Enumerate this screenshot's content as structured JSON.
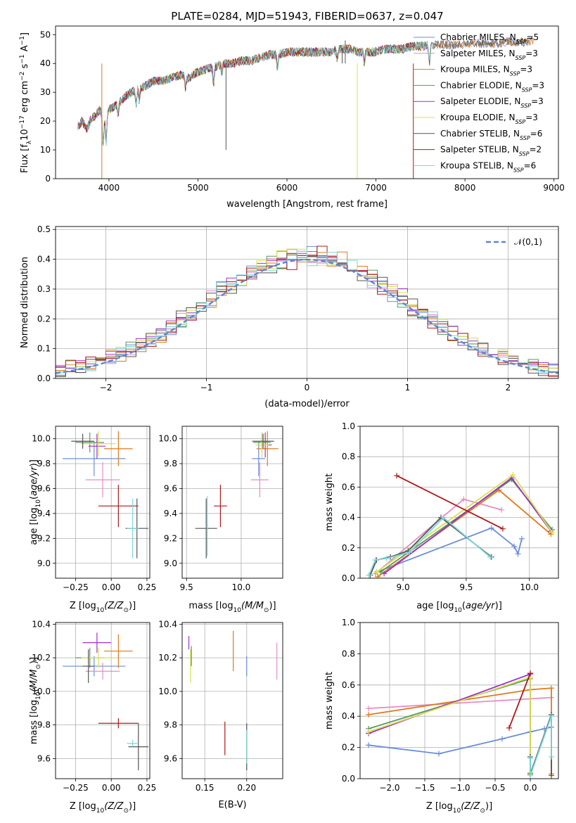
{
  "figure": {
    "title": "PLATE=0284, MJD=51943, FIBERID=0637, z=0.047"
  },
  "models": [
    {
      "name": "Chabrier MILES",
      "nssp": "5",
      "color": "#6a8ed8"
    },
    {
      "name": "Salpeter MILES",
      "nssp": "3",
      "color": "#e68cc4"
    },
    {
      "name": "Kroupa MILES",
      "nssp": "3",
      "color": "#e07a1a"
    },
    {
      "name": "Chabrier ELODIE",
      "nssp": "3",
      "color": "#5a9a5a"
    },
    {
      "name": "Salpeter ELODIE",
      "nssp": "3",
      "color": "#a030c8"
    },
    {
      "name": "Kroupa ELODIE",
      "nssp": "3",
      "color": "#d8e050"
    },
    {
      "name": "Chabrier STELIB",
      "nssp": "6",
      "color": "#555555"
    },
    {
      "name": "Salpeter STELIB",
      "nssp": "2",
      "color": "#b01818"
    },
    {
      "name": "Kroupa STELIB",
      "nssp": "6",
      "color": "#7ad8d8"
    }
  ],
  "chart_data": [
    {
      "id": "spectrum",
      "type": "line",
      "xlabel": "wavelength [Angstrom, rest frame]",
      "ylabel": "Flux [f",
      "ylabel_parts": [
        "Flux [f",
        "λ",
        "10",
        "−17",
        " erg cm",
        "−2",
        " s",
        "−1",
        " A",
        "−1",
        "]"
      ],
      "xlim": [
        3400,
        9050
      ],
      "ylim": [
        0,
        53
      ],
      "xticks": [
        "4000",
        "5000",
        "6000",
        "7000",
        "8000",
        "9000"
      ],
      "yticks": [
        "0",
        "10",
        "20",
        "30",
        "40",
        "50"
      ],
      "legend": "top-right",
      "grid": false,
      "spectrum_anchors": {
        "x": [
          3650,
          3700,
          3750,
          3800,
          3850,
          3900,
          3950,
          4000,
          4100,
          4200,
          4300,
          4400,
          4500,
          4600,
          4700,
          4800,
          4900,
          5000,
          5100,
          5200,
          5300,
          5400,
          5500,
          5600,
          5700,
          5800,
          5900,
          6000,
          6100,
          6200,
          6300,
          6400,
          6500,
          6600,
          6700,
          6800,
          6900,
          7000,
          7100,
          7200,
          7300,
          7400,
          7500
        ],
        "y": [
          18,
          20,
          17,
          21,
          22,
          24,
          20,
          24,
          26,
          29,
          31,
          32,
          34,
          34,
          35,
          36,
          35,
          37,
          38,
          39,
          40,
          40,
          41,
          41,
          42,
          43,
          43,
          44,
          44,
          44,
          44,
          44,
          44,
          45,
          45,
          44,
          44,
          44,
          45,
          45,
          45,
          46,
          46
        ]
      },
      "kroupa_miles_ext": {
        "x": [
          7500,
          7700,
          7900,
          8100,
          8300,
          8500,
          8700,
          8780
        ],
        "y": [
          46,
          46.5,
          46.5,
          47,
          47,
          47.5,
          47.5,
          48
        ]
      }
    },
    {
      "id": "residuals",
      "type": "histogram",
      "xlabel": "(data-model)/error",
      "ylabel": "Normed distribution",
      "xlim": [
        -2.5,
        2.5
      ],
      "ylim": [
        0,
        0.51
      ],
      "xticks": [
        "−2",
        "−1",
        "0",
        "1",
        "2"
      ],
      "yticks": [
        "0.0",
        "0.1",
        "0.2",
        "0.3",
        "0.4",
        "0.5"
      ],
      "legend": "top-right",
      "legend_label": "𝒩(0,1)",
      "grid": true,
      "bin_width": 0.1
    },
    {
      "id": "age-vs-Z",
      "type": "errorbar",
      "xlabel": "Z [log",
      "ylabel": "age [log",
      "xlim": [
        -0.39,
        0.27
      ],
      "ylim": [
        8.88,
        10.1
      ],
      "xticks": [
        "−0.25",
        "0.00",
        "0.25"
      ],
      "yticks": [
        "9.0",
        "9.2",
        "9.4",
        "9.6",
        "9.8",
        "10.0"
      ],
      "grid": true,
      "points": [
        {
          "x": -0.12,
          "y": 9.84,
          "xerr": 0.22,
          "yerr": 0.14,
          "c": 0
        },
        {
          "x": -0.06,
          "y": 9.67,
          "xerr": 0.12,
          "yerr": 0.14,
          "c": 1
        },
        {
          "x": 0.05,
          "y": 9.92,
          "xerr": 0.1,
          "yerr": 0.14,
          "c": 2
        },
        {
          "x": -0.15,
          "y": 9.97,
          "xerr": 0.1,
          "yerr": 0.08,
          "c": 3
        },
        {
          "x": -0.1,
          "y": 9.94,
          "xerr": 0.06,
          "yerr": 0.1,
          "c": 4
        },
        {
          "x": -0.09,
          "y": 9.96,
          "xerr": 0.12,
          "yerr": 0.1,
          "c": 5
        },
        {
          "x": -0.2,
          "y": 9.98,
          "xerr": 0.08,
          "yerr": 0.06,
          "c": 6
        },
        {
          "x": 0.05,
          "y": 9.46,
          "xerr": 0.14,
          "yerr": 0.17,
          "c": 7
        },
        {
          "x": 0.18,
          "y": 9.28,
          "xerr": 0.08,
          "yerr": 0.24,
          "c": 6
        },
        {
          "x": 0.15,
          "y": 9.28,
          "xerr": 0.04,
          "yerr": 0.24,
          "c": 8
        }
      ]
    },
    {
      "id": "age-vs-mass",
      "type": "errorbar",
      "xlabel": "mass [log",
      "ylabel": "",
      "xlim": [
        9.46,
        10.38
      ],
      "ylim": [
        8.88,
        10.1
      ],
      "xticks": [
        "9.5",
        "10.0"
      ],
      "yticks": [
        "9.0",
        "9.2",
        "9.4",
        "9.6",
        "9.8",
        "10.0"
      ],
      "grid": true,
      "points": [
        {
          "x": 10.16,
          "y": 9.84,
          "xerr": 0.06,
          "yerr": 0.14,
          "c": 0
        },
        {
          "x": 10.17,
          "y": 9.67,
          "xerr": 0.08,
          "yerr": 0.14,
          "c": 1
        },
        {
          "x": 10.24,
          "y": 9.92,
          "xerr": 0.1,
          "yerr": 0.14,
          "c": 2
        },
        {
          "x": 10.19,
          "y": 9.97,
          "xerr": 0.08,
          "yerr": 0.08,
          "c": 3
        },
        {
          "x": 10.22,
          "y": 9.95,
          "xerr": 0.06,
          "yerr": 0.1,
          "c": 4
        },
        {
          "x": 10.19,
          "y": 9.95,
          "xerr": 0.06,
          "yerr": 0.1,
          "c": 5
        },
        {
          "x": 10.2,
          "y": 9.98,
          "xerr": 0.1,
          "yerr": 0.06,
          "c": 6
        },
        {
          "x": 9.81,
          "y": 9.46,
          "xerr": 0.06,
          "yerr": 0.17,
          "c": 7
        },
        {
          "x": 9.68,
          "y": 9.28,
          "xerr": 0.1,
          "yerr": 0.24,
          "c": 6
        },
        {
          "x": 9.69,
          "y": 9.3,
          "xerr": 0.01,
          "yerr": 0.24,
          "c": 8
        }
      ]
    },
    {
      "id": "mass-weight-vs-age",
      "type": "line",
      "xlabel": "age  [log",
      "ylabel": "mass weight",
      "xlim": [
        8.66,
        10.23
      ],
      "ylim": [
        0,
        1
      ],
      "xticks": [
        "9.0",
        "9.5",
        "10.0"
      ],
      "yticks": [
        "0.0",
        "0.2",
        "0.4",
        "0.6",
        "0.8",
        "1.0"
      ],
      "grid": true,
      "series": [
        {
          "c": 0,
          "x": [
            8.79,
            9.7,
            9.88,
            9.91,
            9.94
          ],
          "y": [
            0.04,
            0.33,
            0.21,
            0.16,
            0.26
          ]
        },
        {
          "c": 1,
          "x": [
            8.78,
            9.48,
            9.78
          ],
          "y": [
            0.03,
            0.52,
            0.45
          ]
        },
        {
          "c": 2,
          "x": [
            8.8,
            9.76,
            10.17
          ],
          "y": [
            0.01,
            0.58,
            0.29
          ]
        },
        {
          "c": 3,
          "x": [
            8.82,
            9.86,
            10.18
          ],
          "y": [
            0.04,
            0.65,
            0.32
          ]
        },
        {
          "c": 4,
          "x": [
            8.85,
            9.86,
            10.17
          ],
          "y": [
            0.03,
            0.66,
            0.31
          ]
        },
        {
          "c": 5,
          "x": [
            8.79,
            9.87,
            10.18
          ],
          "y": [
            0.04,
            0.68,
            0.3
          ]
        },
        {
          "c": 6,
          "x": [
            8.74,
            8.79,
            8.9,
            9.04,
            9.3,
            9.7
          ],
          "y": [
            0.02,
            0.12,
            0.14,
            0.18,
            0.4,
            0.14
          ]
        },
        {
          "c": 7,
          "x": [
            8.95,
            9.79
          ],
          "y": [
            0.675,
            0.325
          ]
        },
        {
          "c": 8,
          "x": [
            8.73,
            8.78,
            8.87,
            9.05,
            9.32,
            9.69
          ],
          "y": [
            0.02,
            0.12,
            0.13,
            0.17,
            0.4,
            0.14
          ]
        }
      ]
    },
    {
      "id": "mass-vs-Z",
      "type": "errorbar",
      "xlabel": "Z [log",
      "ylabel": "mass [log",
      "xlim": [
        -0.39,
        0.27
      ],
      "ylim": [
        9.48,
        10.41
      ],
      "xticks": [
        "−0.25",
        "0.00",
        "0.25"
      ],
      "yticks": [
        "9.6",
        "9.8",
        "10.0",
        "10.2",
        "10.4"
      ],
      "grid": true,
      "points": [
        {
          "x": -0.12,
          "y": 10.15,
          "xerr": 0.22,
          "yerr": 0.06,
          "c": 0
        },
        {
          "x": -0.06,
          "y": 10.12,
          "xerr": 0.12,
          "yerr": 0.05,
          "c": 1
        },
        {
          "x": 0.05,
          "y": 10.24,
          "xerr": 0.1,
          "yerr": 0.1,
          "c": 2
        },
        {
          "x": -0.15,
          "y": 10.2,
          "xerr": 0.1,
          "yerr": 0.06,
          "c": 3
        },
        {
          "x": -0.1,
          "y": 10.29,
          "xerr": 0.1,
          "yerr": 0.06,
          "c": 4
        },
        {
          "x": -0.09,
          "y": 10.2,
          "xerr": 0.12,
          "yerr": 0.06,
          "c": 5
        },
        {
          "x": -0.16,
          "y": 10.15,
          "xerr": 0.04,
          "yerr": 0.1,
          "c": 6
        },
        {
          "x": 0.05,
          "y": 9.81,
          "xerr": 0.14,
          "yerr": 0.03,
          "c": 7
        },
        {
          "x": 0.19,
          "y": 9.67,
          "xerr": 0.07,
          "yerr": 0.14,
          "c": 6
        },
        {
          "x": 0.15,
          "y": 9.69,
          "xerr": 0.04,
          "yerr": 0.02,
          "c": 8
        }
      ]
    },
    {
      "id": "mass-vs-EBV",
      "type": "errorbar",
      "xlabel": "E(B-V)",
      "ylabel": "",
      "xlim": [
        0.123,
        0.243
      ],
      "ylim": [
        9.48,
        10.41
      ],
      "xticks": [
        "0.15",
        "0.20"
      ],
      "yticks": [
        "9.6",
        "9.8",
        "10.0",
        "10.2",
        "10.4"
      ],
      "grid": true,
      "points": [
        {
          "x": 0.2,
          "y": 10.15,
          "xerr": 0,
          "yerr": 0.06,
          "c": 0
        },
        {
          "x": 0.236,
          "y": 10.18,
          "xerr": 0,
          "yerr": 0.11,
          "c": 1
        },
        {
          "x": 0.184,
          "y": 10.24,
          "xerr": 0,
          "yerr": 0.12,
          "c": 2
        },
        {
          "x": 0.134,
          "y": 10.21,
          "xerr": 0,
          "yerr": 0.06,
          "c": 3
        },
        {
          "x": 0.131,
          "y": 10.29,
          "xerr": 0,
          "yerr": 0.04,
          "c": 4
        },
        {
          "x": 0.133,
          "y": 10.15,
          "xerr": 0,
          "yerr": 0.1,
          "c": 5
        },
        {
          "x": 0.2,
          "y": 9.67,
          "xerr": 0,
          "yerr": 0.14,
          "c": 6
        },
        {
          "x": 0.174,
          "y": 9.72,
          "xerr": 0,
          "yerr": 0.1,
          "c": 7
        },
        {
          "x": 0.2,
          "y": 9.67,
          "xerr": 0,
          "yerr": 0.1,
          "c": 8
        }
      ]
    },
    {
      "id": "mass-weight-vs-Z",
      "type": "line",
      "xlabel": "Z [log",
      "ylabel": "mass weight",
      "xlim": [
        -2.42,
        0.4
      ],
      "ylim": [
        0,
        1
      ],
      "xticks": [
        "−2.0",
        "−1.5",
        "−1.0",
        "−0.5",
        "0.0"
      ],
      "yticks": [
        "0.0",
        "0.2",
        "0.4",
        "0.6",
        "0.8",
        "1.0"
      ],
      "grid": true,
      "series": [
        {
          "c": 0,
          "x": [
            -2.3,
            -1.3,
            -0.4,
            0.0,
            0.2,
            0.3
          ],
          "y": [
            0.215,
            0.16,
            0.255,
            0.3,
            0.32,
            0.33
          ]
        },
        {
          "c": 1,
          "x": [
            -2.3,
            0.3
          ],
          "y": [
            0.45,
            0.52
          ]
        },
        {
          "c": 2,
          "x": [
            -2.3,
            0.0,
            0.3,
            0.3
          ],
          "y": [
            0.41,
            0.57,
            0.58,
            0.03
          ]
        },
        {
          "c": 3,
          "x": [
            -2.3,
            0.0,
            0.0
          ],
          "y": [
            0.32,
            0.64,
            0.04
          ]
        },
        {
          "c": 4,
          "x": [
            -2.3,
            0.0,
            0.0
          ],
          "y": [
            0.29,
            0.67,
            0.03
          ]
        },
        {
          "c": 5,
          "x": [
            -2.3,
            0.0,
            0.0
          ],
          "y": [
            0.3,
            0.65,
            0.04
          ]
        },
        {
          "c": 6,
          "x": [
            0.0,
            0.0,
            0.3,
            0.3
          ],
          "y": [
            0.14,
            0.03,
            0.41,
            0.02
          ]
        },
        {
          "c": 7,
          "x": [
            -0.3,
            0.0
          ],
          "y": [
            0.325,
            0.675
          ]
        },
        {
          "c": 8,
          "x": [
            0.0,
            0.0,
            0.3,
            0.3
          ],
          "y": [
            0.13,
            0.02,
            0.4,
            0.14
          ]
        }
      ]
    }
  ],
  "axis_label_parts": {
    "Zsun": [
      "Z [log",
      "10",
      "(Z/Z",
      "⊙",
      ")]"
    ],
    "Msun": [
      "mass [log",
      "10",
      "(M/M",
      "⊙",
      ")]"
    ],
    "age": [
      "age  [log",
      "10",
      "(",
      "age/yr",
      ")]"
    ]
  }
}
